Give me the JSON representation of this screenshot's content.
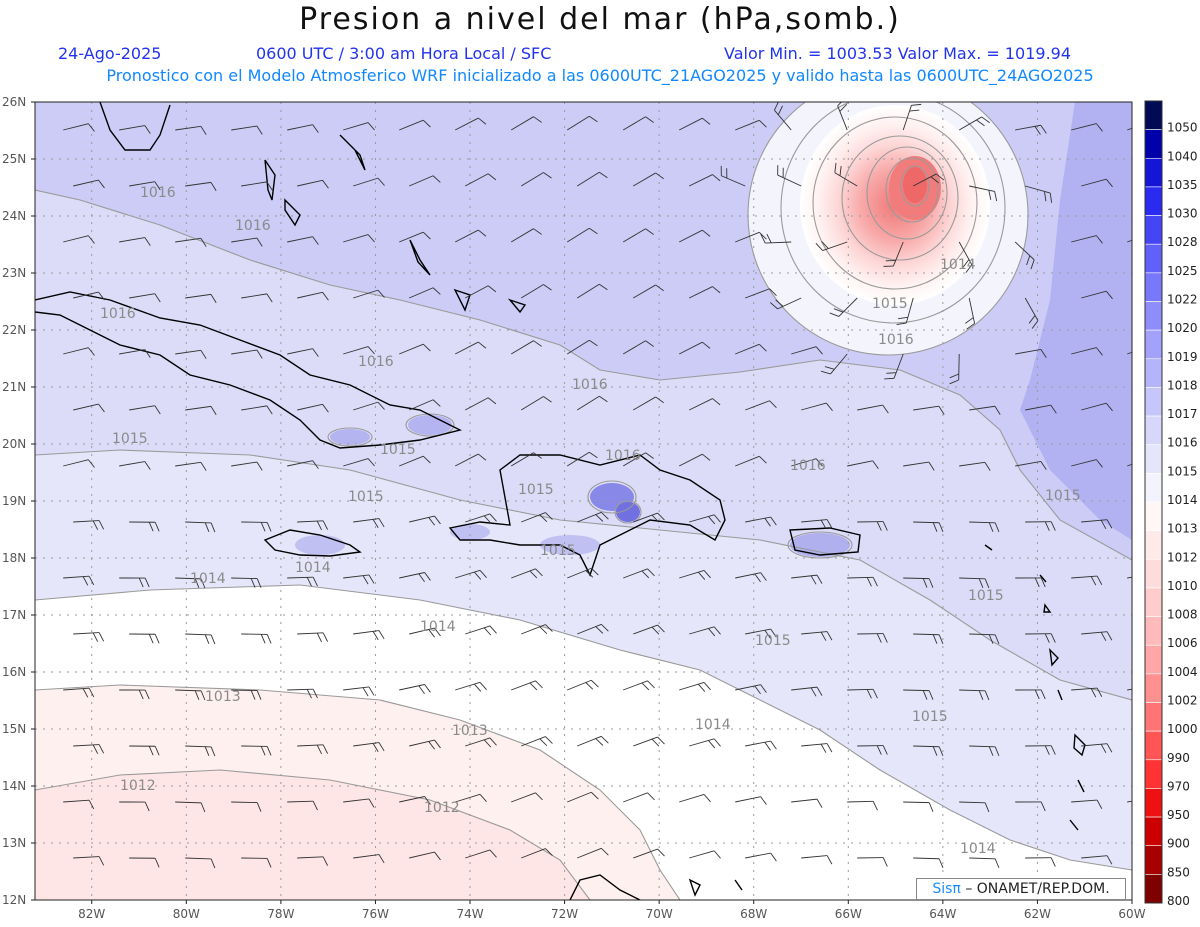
{
  "title": "Presion a nivel del mar (hPa,somb.)",
  "header": {
    "date": "24-Ago-2025",
    "time": "0600 UTC / 3:00 am Hora Local / SFC",
    "min_max": "Valor Min. = 1003.53  Valor Max. = 1019.94",
    "model_line": "Pronostico con el Modelo Atmosferico WRF inicializado a las 0600UTC_21AGO2025 y valido hasta las  0600UTC_24AGO2025"
  },
  "axes": {
    "lat_labels": [
      "26N",
      "25N",
      "24N",
      "23N",
      "22N",
      "21N",
      "20N",
      "19N",
      "18N",
      "17N",
      "16N",
      "15N",
      "14N",
      "13N",
      "12N"
    ],
    "lon_labels": [
      "82W",
      "80W",
      "78W",
      "76W",
      "74W",
      "72W",
      "70W",
      "68W",
      "66W",
      "64W",
      "62W",
      "60W"
    ]
  },
  "colorbar": {
    "labels": [
      "1050",
      "1040",
      "1035",
      "1030",
      "1028",
      "1025",
      "1022",
      "1020",
      "1019",
      "1018",
      "1017",
      "1016",
      "1015",
      "1014",
      "1013",
      "1012",
      "1010",
      "1008",
      "1006",
      "1004",
      "1002",
      "1000",
      "990",
      "970",
      "950",
      "900",
      "850",
      "800"
    ],
    "colors": [
      "#000a55",
      "#0000aa",
      "#1515d8",
      "#2a2af0",
      "#4545f8",
      "#6060fa",
      "#7878fb",
      "#8e8efb",
      "#a2a2fa",
      "#b4b4fa",
      "#c6c6fb",
      "#d7d7fb",
      "#e5e5fc",
      "#f3f3fe",
      "#fff6f6",
      "#ffe9e9",
      "#ffdcdc",
      "#ffcccc",
      "#ffbbbb",
      "#ffa6a6",
      "#ff9090",
      "#ff7575",
      "#ff5555",
      "#ff3333",
      "#ee1111",
      "#cc0000",
      "#a80000",
      "#800000"
    ]
  },
  "contour_labels": [
    "1016",
    "1016",
    "1016",
    "1016",
    "1016",
    "1016",
    "1016",
    "1016",
    "1015",
    "1015",
    "1015",
    "1015",
    "1015",
    "1015",
    "1015",
    "1015",
    "1014",
    "1014",
    "1014",
    "1014",
    "1014",
    "1013",
    "1013",
    "1012",
    "1012",
    "1014",
    "1015",
    "1015"
  ],
  "credit": {
    "brand": "Sisπ",
    "text": "– ONAMET/REP.DOM."
  }
}
